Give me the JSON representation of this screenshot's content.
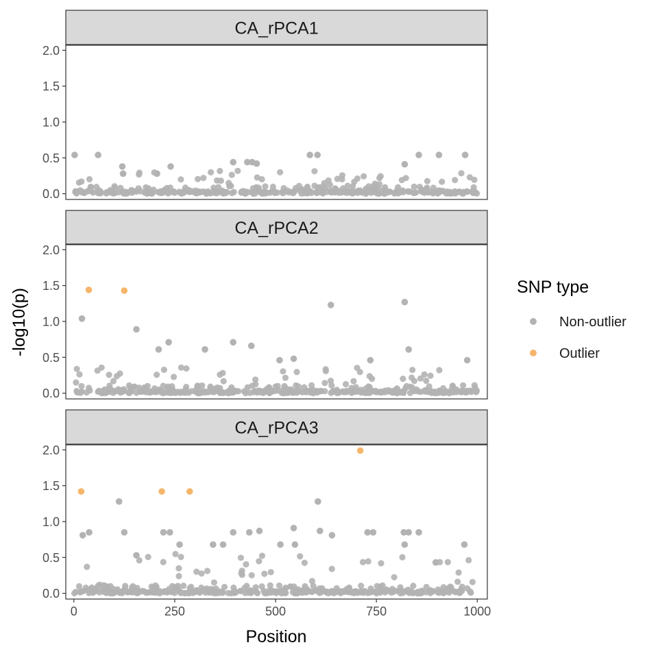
{
  "chart_data": {
    "type": "scatter",
    "facet_layout": "vertical",
    "xlabel": "Position",
    "ylabel": "-log10(p)",
    "xlim": [
      -20,
      1025
    ],
    "ylim": [
      -0.08,
      2.07
    ],
    "x_ticks": [
      0,
      250,
      500,
      750,
      1000
    ],
    "x_tick_labels": [
      "0",
      "250",
      "500",
      "750",
      "1000"
    ],
    "y_ticks": [
      0,
      0.5,
      1,
      1.5,
      2
    ],
    "y_tick_labels": [
      "0.0",
      "0.5",
      "1.0",
      "1.5",
      "2.0"
    ],
    "legend": {
      "title": "SNP type",
      "position": "right",
      "entries": [
        {
          "label": "Non-outlier",
          "color": "#b3b3b3"
        },
        {
          "label": "Outlier",
          "color": "#f5b66c"
        }
      ]
    },
    "colors": {
      "non_outlier": "#b3b3b3",
      "outlier": "#f5b66c",
      "strip_fill": "#d9d9d9",
      "panel_border": "#333333"
    },
    "noise_seed": 12345,
    "panels": [
      {
        "label": "CA_rPCA1",
        "notable_points": [
          {
            "x": 2,
            "y": 0.54,
            "type": "Non-outlier"
          },
          {
            "x": 60,
            "y": 0.54,
            "type": "Non-outlier"
          },
          {
            "x": 120,
            "y": 0.38,
            "type": "Non-outlier"
          },
          {
            "x": 122,
            "y": 0.28,
            "type": "Non-outlier"
          },
          {
            "x": 240,
            "y": 0.38,
            "type": "Non-outlier"
          },
          {
            "x": 206,
            "y": 0.28,
            "type": "Non-outlier"
          },
          {
            "x": 395,
            "y": 0.44,
            "type": "Non-outlier"
          },
          {
            "x": 430,
            "y": 0.44,
            "type": "Non-outlier"
          },
          {
            "x": 442,
            "y": 0.44,
            "type": "Non-outlier"
          },
          {
            "x": 453,
            "y": 0.42,
            "type": "Non-outlier"
          },
          {
            "x": 585,
            "y": 0.54,
            "type": "Non-outlier"
          },
          {
            "x": 604,
            "y": 0.54,
            "type": "Non-outlier"
          },
          {
            "x": 820,
            "y": 0.41,
            "type": "Non-outlier"
          },
          {
            "x": 855,
            "y": 0.54,
            "type": "Non-outlier"
          },
          {
            "x": 905,
            "y": 0.54,
            "type": "Non-outlier"
          },
          {
            "x": 970,
            "y": 0.54,
            "type": "Non-outlier"
          }
        ],
        "background": {
          "count": 430,
          "y_max": 0.32
        }
      },
      {
        "label": "CA_rPCA2",
        "notable_points": [
          {
            "x": 37,
            "y": 1.44,
            "type": "Outlier"
          },
          {
            "x": 125,
            "y": 1.43,
            "type": "Outlier"
          },
          {
            "x": 20,
            "y": 1.04,
            "type": "Non-outlier"
          },
          {
            "x": 155,
            "y": 0.89,
            "type": "Non-outlier"
          },
          {
            "x": 210,
            "y": 0.61,
            "type": "Non-outlier"
          },
          {
            "x": 235,
            "y": 0.71,
            "type": "Non-outlier"
          },
          {
            "x": 325,
            "y": 0.61,
            "type": "Non-outlier"
          },
          {
            "x": 395,
            "y": 0.71,
            "type": "Non-outlier"
          },
          {
            "x": 440,
            "y": 0.66,
            "type": "Non-outlier"
          },
          {
            "x": 510,
            "y": 0.46,
            "type": "Non-outlier"
          },
          {
            "x": 545,
            "y": 0.48,
            "type": "Non-outlier"
          },
          {
            "x": 637,
            "y": 1.23,
            "type": "Non-outlier"
          },
          {
            "x": 820,
            "y": 1.27,
            "type": "Non-outlier"
          },
          {
            "x": 830,
            "y": 0.61,
            "type": "Non-outlier"
          },
          {
            "x": 735,
            "y": 0.46,
            "type": "Non-outlier"
          },
          {
            "x": 975,
            "y": 0.46,
            "type": "Non-outlier"
          }
        ],
        "background": {
          "count": 430,
          "y_max": 0.36
        }
      },
      {
        "label": "CA_rPCA3",
        "notable_points": [
          {
            "x": 18,
            "y": 1.42,
            "type": "Outlier"
          },
          {
            "x": 218,
            "y": 1.42,
            "type": "Outlier"
          },
          {
            "x": 287,
            "y": 1.42,
            "type": "Outlier"
          },
          {
            "x": 710,
            "y": 1.99,
            "type": "Outlier"
          },
          {
            "x": 112,
            "y": 1.28,
            "type": "Non-outlier"
          },
          {
            "x": 605,
            "y": 1.28,
            "type": "Non-outlier"
          },
          {
            "x": 22,
            "y": 0.81,
            "type": "Non-outlier"
          },
          {
            "x": 38,
            "y": 0.85,
            "type": "Non-outlier"
          },
          {
            "x": 125,
            "y": 0.85,
            "type": "Non-outlier"
          },
          {
            "x": 222,
            "y": 0.85,
            "type": "Non-outlier"
          },
          {
            "x": 238,
            "y": 0.85,
            "type": "Non-outlier"
          },
          {
            "x": 262,
            "y": 0.68,
            "type": "Non-outlier"
          },
          {
            "x": 345,
            "y": 0.68,
            "type": "Non-outlier"
          },
          {
            "x": 370,
            "y": 0.68,
            "type": "Non-outlier"
          },
          {
            "x": 395,
            "y": 0.85,
            "type": "Non-outlier"
          },
          {
            "x": 435,
            "y": 0.85,
            "type": "Non-outlier"
          },
          {
            "x": 460,
            "y": 0.87,
            "type": "Non-outlier"
          },
          {
            "x": 512,
            "y": 0.68,
            "type": "Non-outlier"
          },
          {
            "x": 545,
            "y": 0.91,
            "type": "Non-outlier"
          },
          {
            "x": 548,
            "y": 0.68,
            "type": "Non-outlier"
          },
          {
            "x": 610,
            "y": 0.87,
            "type": "Non-outlier"
          },
          {
            "x": 640,
            "y": 0.81,
            "type": "Non-outlier"
          },
          {
            "x": 728,
            "y": 0.85,
            "type": "Non-outlier"
          },
          {
            "x": 742,
            "y": 0.85,
            "type": "Non-outlier"
          },
          {
            "x": 818,
            "y": 0.85,
            "type": "Non-outlier"
          },
          {
            "x": 830,
            "y": 0.85,
            "type": "Non-outlier"
          },
          {
            "x": 855,
            "y": 0.85,
            "type": "Non-outlier"
          },
          {
            "x": 820,
            "y": 0.68,
            "type": "Non-outlier"
          },
          {
            "x": 968,
            "y": 0.68,
            "type": "Non-outlier"
          },
          {
            "x": 155,
            "y": 0.53,
            "type": "Non-outlier"
          },
          {
            "x": 897,
            "y": 0.43,
            "type": "Non-outlier"
          }
        ],
        "background": {
          "count": 430,
          "y_max": 0.55
        }
      }
    ]
  }
}
